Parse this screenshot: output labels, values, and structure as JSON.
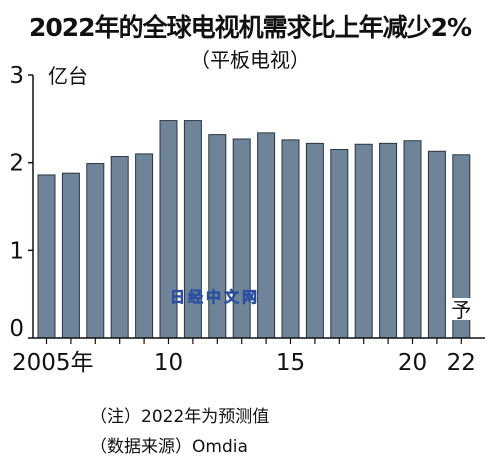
{
  "header": {
    "title": "2022年的全球电视机需求比上年减少2%",
    "subtitle": "（平板电视）"
  },
  "notes": {
    "note1": "（注）2022年为预测值",
    "note2": "（数据来源）Omdia"
  },
  "watermark": "日经中文网",
  "colors": {
    "bar": "#6f8499",
    "bar_stroke": "#2a3540",
    "axis": "#111111"
  },
  "chart_data": {
    "type": "bar",
    "title": "2022年的全球电视机需求比上年减少2%",
    "subtitle": "（平板电视）",
    "ylabel": "亿台",
    "xlabel": "",
    "ylim": [
      0,
      3
    ],
    "yticks": [
      0,
      1,
      2,
      3
    ],
    "grid": false,
    "categories": [
      "2005",
      "2006",
      "2007",
      "2008",
      "2009",
      "2010",
      "2011",
      "2012",
      "2013",
      "2014",
      "2015",
      "2016",
      "2017",
      "2018",
      "2019",
      "2020",
      "2021",
      "2022"
    ],
    "values": [
      1.86,
      1.88,
      1.99,
      2.07,
      2.1,
      2.48,
      2.48,
      2.32,
      2.27,
      2.34,
      2.26,
      2.22,
      2.15,
      2.21,
      2.22,
      2.25,
      2.13,
      2.09
    ],
    "xtick_labels": [
      {
        "index": 0,
        "text": "2005年"
      },
      {
        "index": 5,
        "text": "10"
      },
      {
        "index": 10,
        "text": "15"
      },
      {
        "index": 15,
        "text": "20"
      },
      {
        "index": 17,
        "text": "22"
      }
    ],
    "annotations": [
      {
        "index": 17,
        "text": "予"
      }
    ]
  }
}
